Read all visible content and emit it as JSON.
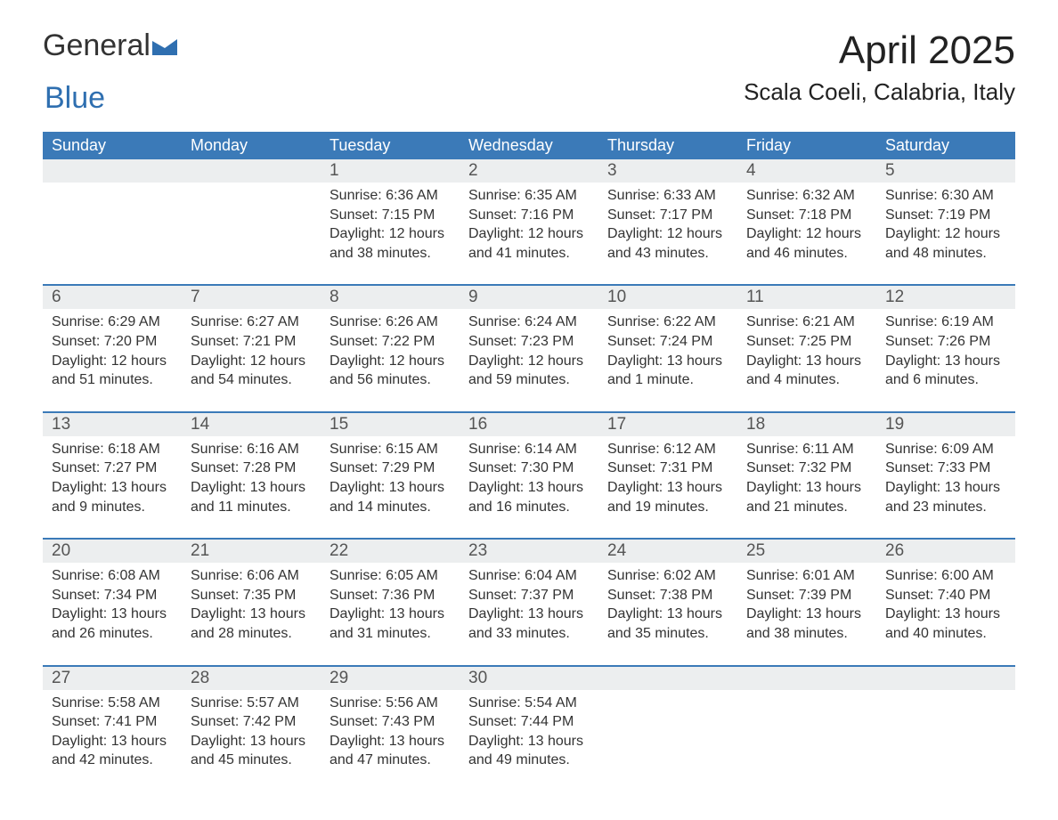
{
  "logo": {
    "text1": "General",
    "text2": "Blue"
  },
  "title": "April 2025",
  "location": "Scala Coeli, Calabria, Italy",
  "colors": {
    "header_bg": "#3b7ab8",
    "header_text": "#ffffff",
    "daynum_bg": "#eceeef",
    "border": "#3b7ab8",
    "text": "#333333",
    "logo_blue": "#2f6fb0"
  },
  "daysOfWeek": [
    "Sunday",
    "Monday",
    "Tuesday",
    "Wednesday",
    "Thursday",
    "Friday",
    "Saturday"
  ],
  "weeks": [
    [
      {
        "num": "",
        "sunrise": "",
        "sunset": "",
        "daylight": ""
      },
      {
        "num": "",
        "sunrise": "",
        "sunset": "",
        "daylight": ""
      },
      {
        "num": "1",
        "sunrise": "Sunrise: 6:36 AM",
        "sunset": "Sunset: 7:15 PM",
        "daylight": "Daylight: 12 hours and 38 minutes."
      },
      {
        "num": "2",
        "sunrise": "Sunrise: 6:35 AM",
        "sunset": "Sunset: 7:16 PM",
        "daylight": "Daylight: 12 hours and 41 minutes."
      },
      {
        "num": "3",
        "sunrise": "Sunrise: 6:33 AM",
        "sunset": "Sunset: 7:17 PM",
        "daylight": "Daylight: 12 hours and 43 minutes."
      },
      {
        "num": "4",
        "sunrise": "Sunrise: 6:32 AM",
        "sunset": "Sunset: 7:18 PM",
        "daylight": "Daylight: 12 hours and 46 minutes."
      },
      {
        "num": "5",
        "sunrise": "Sunrise: 6:30 AM",
        "sunset": "Sunset: 7:19 PM",
        "daylight": "Daylight: 12 hours and 48 minutes."
      }
    ],
    [
      {
        "num": "6",
        "sunrise": "Sunrise: 6:29 AM",
        "sunset": "Sunset: 7:20 PM",
        "daylight": "Daylight: 12 hours and 51 minutes."
      },
      {
        "num": "7",
        "sunrise": "Sunrise: 6:27 AM",
        "sunset": "Sunset: 7:21 PM",
        "daylight": "Daylight: 12 hours and 54 minutes."
      },
      {
        "num": "8",
        "sunrise": "Sunrise: 6:26 AM",
        "sunset": "Sunset: 7:22 PM",
        "daylight": "Daylight: 12 hours and 56 minutes."
      },
      {
        "num": "9",
        "sunrise": "Sunrise: 6:24 AM",
        "sunset": "Sunset: 7:23 PM",
        "daylight": "Daylight: 12 hours and 59 minutes."
      },
      {
        "num": "10",
        "sunrise": "Sunrise: 6:22 AM",
        "sunset": "Sunset: 7:24 PM",
        "daylight": "Daylight: 13 hours and 1 minute."
      },
      {
        "num": "11",
        "sunrise": "Sunrise: 6:21 AM",
        "sunset": "Sunset: 7:25 PM",
        "daylight": "Daylight: 13 hours and 4 minutes."
      },
      {
        "num": "12",
        "sunrise": "Sunrise: 6:19 AM",
        "sunset": "Sunset: 7:26 PM",
        "daylight": "Daylight: 13 hours and 6 minutes."
      }
    ],
    [
      {
        "num": "13",
        "sunrise": "Sunrise: 6:18 AM",
        "sunset": "Sunset: 7:27 PM",
        "daylight": "Daylight: 13 hours and 9 minutes."
      },
      {
        "num": "14",
        "sunrise": "Sunrise: 6:16 AM",
        "sunset": "Sunset: 7:28 PM",
        "daylight": "Daylight: 13 hours and 11 minutes."
      },
      {
        "num": "15",
        "sunrise": "Sunrise: 6:15 AM",
        "sunset": "Sunset: 7:29 PM",
        "daylight": "Daylight: 13 hours and 14 minutes."
      },
      {
        "num": "16",
        "sunrise": "Sunrise: 6:14 AM",
        "sunset": "Sunset: 7:30 PM",
        "daylight": "Daylight: 13 hours and 16 minutes."
      },
      {
        "num": "17",
        "sunrise": "Sunrise: 6:12 AM",
        "sunset": "Sunset: 7:31 PM",
        "daylight": "Daylight: 13 hours and 19 minutes."
      },
      {
        "num": "18",
        "sunrise": "Sunrise: 6:11 AM",
        "sunset": "Sunset: 7:32 PM",
        "daylight": "Daylight: 13 hours and 21 minutes."
      },
      {
        "num": "19",
        "sunrise": "Sunrise: 6:09 AM",
        "sunset": "Sunset: 7:33 PM",
        "daylight": "Daylight: 13 hours and 23 minutes."
      }
    ],
    [
      {
        "num": "20",
        "sunrise": "Sunrise: 6:08 AM",
        "sunset": "Sunset: 7:34 PM",
        "daylight": "Daylight: 13 hours and 26 minutes."
      },
      {
        "num": "21",
        "sunrise": "Sunrise: 6:06 AM",
        "sunset": "Sunset: 7:35 PM",
        "daylight": "Daylight: 13 hours and 28 minutes."
      },
      {
        "num": "22",
        "sunrise": "Sunrise: 6:05 AM",
        "sunset": "Sunset: 7:36 PM",
        "daylight": "Daylight: 13 hours and 31 minutes."
      },
      {
        "num": "23",
        "sunrise": "Sunrise: 6:04 AM",
        "sunset": "Sunset: 7:37 PM",
        "daylight": "Daylight: 13 hours and 33 minutes."
      },
      {
        "num": "24",
        "sunrise": "Sunrise: 6:02 AM",
        "sunset": "Sunset: 7:38 PM",
        "daylight": "Daylight: 13 hours and 35 minutes."
      },
      {
        "num": "25",
        "sunrise": "Sunrise: 6:01 AM",
        "sunset": "Sunset: 7:39 PM",
        "daylight": "Daylight: 13 hours and 38 minutes."
      },
      {
        "num": "26",
        "sunrise": "Sunrise: 6:00 AM",
        "sunset": "Sunset: 7:40 PM",
        "daylight": "Daylight: 13 hours and 40 minutes."
      }
    ],
    [
      {
        "num": "27",
        "sunrise": "Sunrise: 5:58 AM",
        "sunset": "Sunset: 7:41 PM",
        "daylight": "Daylight: 13 hours and 42 minutes."
      },
      {
        "num": "28",
        "sunrise": "Sunrise: 5:57 AM",
        "sunset": "Sunset: 7:42 PM",
        "daylight": "Daylight: 13 hours and 45 minutes."
      },
      {
        "num": "29",
        "sunrise": "Sunrise: 5:56 AM",
        "sunset": "Sunset: 7:43 PM",
        "daylight": "Daylight: 13 hours and 47 minutes."
      },
      {
        "num": "30",
        "sunrise": "Sunrise: 5:54 AM",
        "sunset": "Sunset: 7:44 PM",
        "daylight": "Daylight: 13 hours and 49 minutes."
      },
      {
        "num": "",
        "sunrise": "",
        "sunset": "",
        "daylight": ""
      },
      {
        "num": "",
        "sunrise": "",
        "sunset": "",
        "daylight": ""
      },
      {
        "num": "",
        "sunrise": "",
        "sunset": "",
        "daylight": ""
      }
    ]
  ]
}
